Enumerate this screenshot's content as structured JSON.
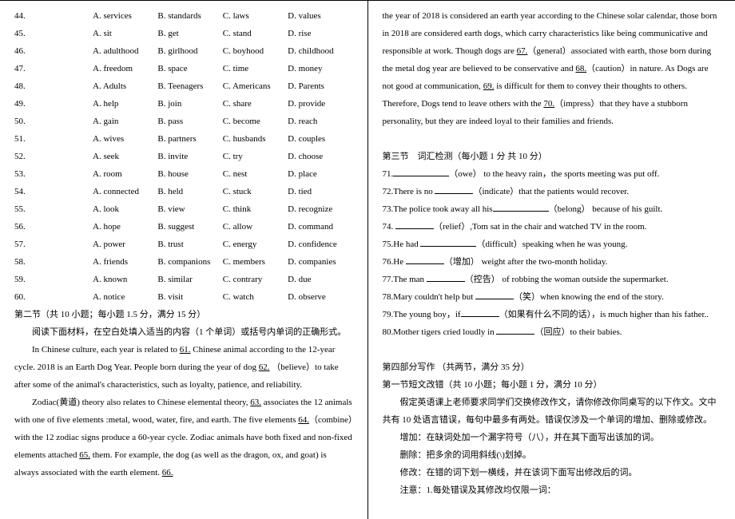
{
  "left": {
    "mc": [
      {
        "n": "44.",
        "a": "A. services",
        "b": "B. standards",
        "c": "C. laws",
        "d": "D. values"
      },
      {
        "n": "45.",
        "a": "A. sit",
        "b": "B. get",
        "c": "C. stand",
        "d": "D. rise"
      },
      {
        "n": "46.",
        "a": "A. adulthood",
        "b": "B. girlhood",
        "c": "C. boyhood",
        "d": "D. childhood"
      },
      {
        "n": "47.",
        "a": "A. freedom",
        "b": "B. space",
        "c": "C. time",
        "d": "D. money"
      },
      {
        "n": "48.",
        "a": "A. Adults",
        "b": "B. Teenagers",
        "c": "C. Americans",
        "d": "D. Parents"
      },
      {
        "n": "49.",
        "a": "A. help",
        "b": "B. join",
        "c": "C. share",
        "d": "D. provide"
      },
      {
        "n": "50.",
        "a": "A. gain",
        "b": "B. pass",
        "c": "C. become",
        "d": "D. reach"
      },
      {
        "n": "51.",
        "a": "A. wives",
        "b": "B. partners",
        "c": "C. husbands",
        "d": "D. couples"
      },
      {
        "n": "52.",
        "a": "A. seek",
        "b": "B. invite",
        "c": "C. try",
        "d": "D. choose"
      },
      {
        "n": "53.",
        "a": "A. room",
        "b": "B. house",
        "c": "C. nest",
        "d": "D. place"
      },
      {
        "n": "54.",
        "a": "A. connected",
        "b": "B. held",
        "c": "C. stuck",
        "d": "D. tied"
      },
      {
        "n": "55.",
        "a": "A. look",
        "b": "B. view",
        "c": "C. think",
        "d": "D. recognize"
      },
      {
        "n": "56.",
        "a": "A. hope",
        "b": "B. suggest",
        "c": "C. allow",
        "d": "D. command"
      },
      {
        "n": "57.",
        "a": "A. power",
        "b": "B. trust",
        "c": "C. energy",
        "d": "D. confidence"
      },
      {
        "n": "58.",
        "a": "A. friends",
        "b": "B. companions",
        "c": "C. members",
        "d": "D. companies"
      },
      {
        "n": "59.",
        "a": "A. known",
        "b": "B. similar",
        "c": "C. contrary",
        "d": "D. due"
      },
      {
        "n": "60.",
        "a": "A. notice",
        "b": "B. visit",
        "c": "C. watch",
        "d": "D. observe"
      }
    ],
    "section2_title": "第二节（共 10 小题；每小题 1.5 分，满分 15 分）",
    "section2_instr": "阅读下面材料，在空白处填入适当的内容（1 个单词）或括号内单词的正确形式。",
    "p1a": "In Chinese culture, each year is related to ",
    "p1_61": "61.",
    "p1b": " Chinese animal according to the 12-year cycle. 2018 is an Earth Dog Year. People born during the year of dog ",
    "p1_62": "62.",
    "p1c": "  （believe）to take after some of the animal's characteristics, such as loyalty, patience, and reliability.",
    "p2a": "Zodiac(黄道) theory also relates to Chinese elemental theory, ",
    "p2_63": "63.",
    "p2b": " associates the 12 animals with one of five elements :metal, wood, water, fire, and earth. The five elements ",
    "p2_64": "64.",
    "p2c": "（combine）with the 12 zodiac signs produce a 60-year cycle. Zodiac animals have both fixed and non-fixed elements attached ",
    "p2_65": "65.",
    "p2d": " them. For example, the dog (as well as the dragon, ox, and goat) is always associated with the earth element. ",
    "p2_66": "66."
  },
  "right": {
    "cont_a": "the year of 2018 is considered an earth year according to the Chinese solar calendar, those born in 2018 are considered earth dogs, which carry characteristics like being communicative and responsible at work. Though dogs are ",
    "c67": "67.",
    "cont_b": "（general）associated with earth, those born during the metal dog year are believed to be conservative and ",
    "c68": "68.",
    "cont_c": "（caution）in nature. As Dogs are not good at communication, ",
    "c69": "69.",
    "cont_d": " is difficult for them to convey their thoughts to others. Therefore, Dogs tend to leave others with the ",
    "c70": "70.",
    "cont_e": "（impress）that they have a stubborn personality, but they are indeed loyal to their families and friends.",
    "sec3_title": "第三节　词汇检测（每小题 1 分 共 10 分）",
    "q71a": "71.",
    "q71b": "（owe） to the heavy rain，the sports meeting was put off.",
    "q72a": "72.There is no ",
    "q72b": "（indicate）that the patients would recover.",
    "q73a": "73.The police took away all his",
    "q73b": "（belong）  because of his guilt.",
    "q74a": "74. ",
    "q74b": "（relief）,Tom sat in the chair and watched TV in the room.",
    "q75a": "75.He had ",
    "q75b": "（difficult）speaking when he was young.",
    "q76a": "76.He ",
    "q76b": "（增加）  weight after the two-month holiday.",
    "q77a": "77.The man ",
    "q77b": "（控告） of robbing the woman outside the supermarket.",
    "q78a": "78.Mary couldn't help but ",
    "q78b": "（笑）when knowing the end of the story.",
    "q79a": "79.The young boy，if",
    "q79b": "（如果有什么不同的话），is much higher than his father..",
    "q80a": "80.Mother tigers cried loudly in ",
    "q80b": "（回应）to their babies.",
    "sec4_title": "第四部分写作 （共两节，满分 35 分）",
    "sec4_1_title": "第一节短文改错（共 10 小题；每小题 1 分，满分 10 分）",
    "sec4_1_instr": "假定英语课上老师要求同学们交换修改作文，请你修改你同桌写的以下作文。文中共有 10 处语言错误，每句中最多有两处。错误仅涉及一个单词的增加、删除或修改。",
    "note_add": "增加：在缺词处加一个漏字符号（八），并在其下面写出该加的词。",
    "note_del": "删除：把多余的词用斜线(\\)划掉。",
    "note_mod": "修改：在错的词下划一横线，并在该词下面写出修改后的词。",
    "note_att": "注意：1.每处错误及其修改均仅限一词："
  }
}
